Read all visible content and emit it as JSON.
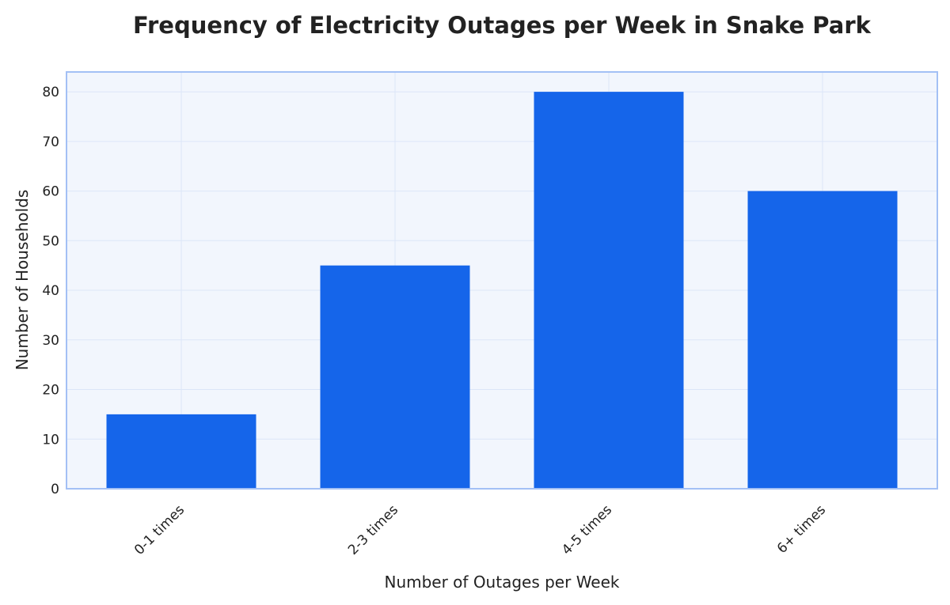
{
  "chart_data": {
    "type": "bar",
    "title": "Frequency of Electricity Outages per Week in Snake Park",
    "xlabel": "Number of Outages per Week",
    "ylabel": "Number of Households",
    "categories": [
      "0-1 times",
      "2-3 times",
      "4-5 times",
      "6+ times"
    ],
    "values": [
      15,
      45,
      80,
      60
    ],
    "ylim": [
      0,
      84
    ],
    "yticks": [
      0,
      10,
      20,
      30,
      40,
      50,
      60,
      70,
      80
    ],
    "ytick_labels": [
      "0",
      "10",
      "20",
      "30",
      "40",
      "50",
      "60",
      "70",
      "80"
    ],
    "grid": true,
    "legend": "none",
    "colors": {
      "bar": "#1565EA",
      "plot_background": "#F2F6FD",
      "plot_border": "#A3C0F5",
      "grid": "#DCE6F8",
      "text": "#222222"
    }
  }
}
